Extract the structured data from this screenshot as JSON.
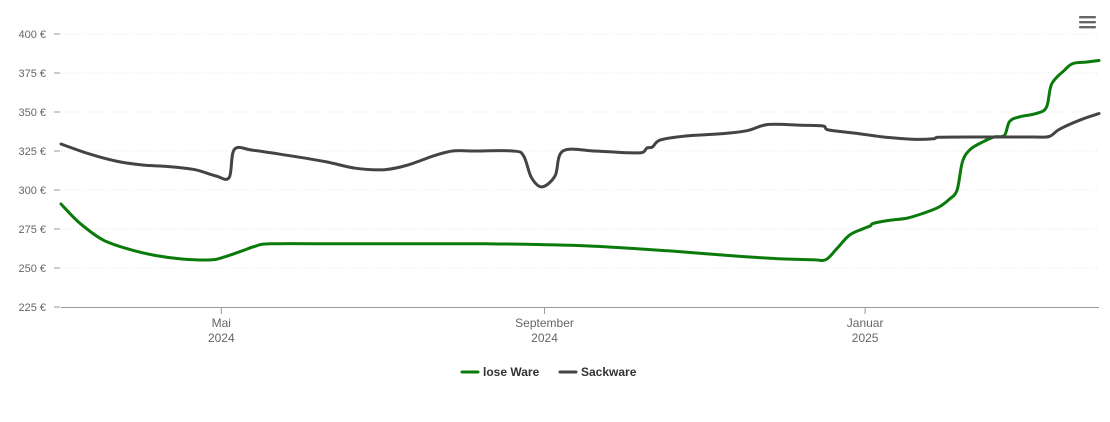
{
  "chart_data": {
    "type": "line",
    "title": "",
    "xlabel": "",
    "ylabel": "",
    "ylim": [
      225,
      400
    ],
    "y_ticks": [
      "225 €",
      "250 €",
      "275 €",
      "300 €",
      "325 €",
      "350 €",
      "375 €",
      "400 €"
    ],
    "y_tick_values": [
      225,
      250,
      275,
      300,
      325,
      350,
      375,
      400
    ],
    "x_range": [
      "2024-03-01",
      "2025-03-31"
    ],
    "x_ticks": [
      {
        "date": "2024-05-01",
        "line1": "Mai",
        "line2": "2024"
      },
      {
        "date": "2024-09-01",
        "line1": "September",
        "line2": "2024"
      },
      {
        "date": "2025-01-01",
        "line1": "Januar",
        "line2": "2025"
      }
    ],
    "grid": true,
    "legend_position": "bottom-center",
    "series": [
      {
        "name": "lose Ware",
        "color": "#0a7a0a",
        "points": [
          [
            "2024-03-01",
            291
          ],
          [
            "2024-03-08",
            279
          ],
          [
            "2024-03-17",
            268
          ],
          [
            "2024-03-27",
            262
          ],
          [
            "2024-04-06",
            258
          ],
          [
            "2024-04-16",
            255.8
          ],
          [
            "2024-04-27",
            255.2
          ],
          [
            "2024-05-02",
            257
          ],
          [
            "2024-05-09",
            261
          ],
          [
            "2024-05-14",
            264
          ],
          [
            "2024-05-20",
            265.5
          ],
          [
            "2024-06-15",
            265.5
          ],
          [
            "2024-07-15",
            265.5
          ],
          [
            "2024-08-10",
            265.5
          ],
          [
            "2024-08-25",
            265.2
          ],
          [
            "2024-09-20",
            264
          ],
          [
            "2024-10-18",
            261
          ],
          [
            "2024-11-10",
            258
          ],
          [
            "2024-11-28",
            256
          ],
          [
            "2024-12-12",
            255.3
          ],
          [
            "2024-12-17",
            255.3
          ],
          [
            "2024-12-21",
            262
          ],
          [
            "2024-12-26",
            271
          ],
          [
            "2024-12-31",
            275
          ],
          [
            "2025-01-03",
            277
          ],
          [
            "2025-01-04",
            278.5
          ],
          [
            "2025-01-10",
            280.5
          ],
          [
            "2025-01-17",
            282
          ],
          [
            "2025-01-23",
            285
          ],
          [
            "2025-01-29",
            289
          ],
          [
            "2025-02-02",
            294
          ],
          [
            "2025-02-05",
            300
          ],
          [
            "2025-02-07",
            318
          ],
          [
            "2025-02-10",
            326
          ],
          [
            "2025-02-15",
            331
          ],
          [
            "2025-02-19",
            334
          ],
          [
            "2025-02-23",
            335
          ],
          [
            "2025-02-25",
            344
          ],
          [
            "2025-03-01",
            347
          ],
          [
            "2025-03-07",
            349
          ],
          [
            "2025-03-11",
            353
          ],
          [
            "2025-03-13",
            368
          ],
          [
            "2025-03-18",
            377
          ],
          [
            "2025-03-21",
            381
          ],
          [
            "2025-03-26",
            382
          ],
          [
            "2025-03-31",
            383
          ]
        ]
      },
      {
        "name": "Sackware",
        "color": "#444444",
        "points": [
          [
            "2024-03-01",
            329.5
          ],
          [
            "2024-03-12",
            323
          ],
          [
            "2024-03-22",
            318.5
          ],
          [
            "2024-04-01",
            316
          ],
          [
            "2024-04-11",
            315
          ],
          [
            "2024-04-21",
            313
          ],
          [
            "2024-04-29",
            309
          ],
          [
            "2024-05-04",
            308
          ],
          [
            "2024-05-06",
            326
          ],
          [
            "2024-05-13",
            325.5
          ],
          [
            "2024-05-27",
            322
          ],
          [
            "2024-06-10",
            318
          ],
          [
            "2024-06-21",
            314
          ],
          [
            "2024-07-02",
            313
          ],
          [
            "2024-07-11",
            316
          ],
          [
            "2024-07-21",
            322
          ],
          [
            "2024-07-28",
            325
          ],
          [
            "2024-08-05",
            325
          ],
          [
            "2024-08-20",
            325
          ],
          [
            "2024-08-24",
            322
          ],
          [
            "2024-08-27",
            308
          ],
          [
            "2024-08-31",
            302
          ],
          [
            "2024-09-05",
            309
          ],
          [
            "2024-09-08",
            325
          ],
          [
            "2024-09-20",
            325
          ],
          [
            "2024-10-01",
            324
          ],
          [
            "2024-10-08",
            324
          ],
          [
            "2024-10-10",
            327
          ],
          [
            "2024-10-12",
            327.5
          ],
          [
            "2024-10-15",
            332
          ],
          [
            "2024-10-24",
            334.5
          ],
          [
            "2024-11-07",
            336
          ],
          [
            "2024-11-17",
            338
          ],
          [
            "2024-11-25",
            342
          ],
          [
            "2024-12-08",
            341.5
          ],
          [
            "2024-12-16",
            341
          ],
          [
            "2024-12-18",
            338.5
          ],
          [
            "2024-12-28",
            336.5
          ],
          [
            "2025-01-08",
            334
          ],
          [
            "2025-01-19",
            332.5
          ],
          [
            "2025-01-27",
            332.8
          ],
          [
            "2025-01-29",
            333.8
          ],
          [
            "2025-02-10",
            334
          ],
          [
            "2025-02-22",
            334
          ],
          [
            "2025-03-06",
            334
          ],
          [
            "2025-03-12",
            334.3
          ],
          [
            "2025-03-16",
            339
          ],
          [
            "2025-03-24",
            345
          ],
          [
            "2025-03-31",
            349
          ]
        ]
      }
    ]
  },
  "legend": {
    "items": [
      {
        "label": "lose Ware",
        "color": "#0a7a0a"
      },
      {
        "label": "Sackware",
        "color": "#444444"
      }
    ]
  },
  "icons": {
    "menu": "hamburger-menu-icon"
  }
}
